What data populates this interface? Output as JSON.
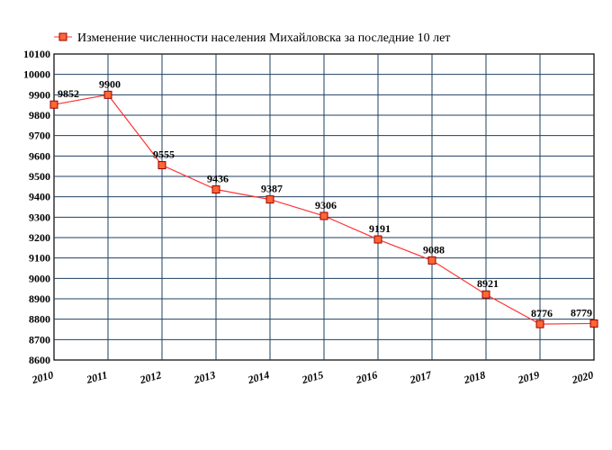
{
  "chart_data": {
    "type": "line",
    "title": "",
    "xlabel": "",
    "ylabel": "",
    "x": [
      "2010",
      "2011",
      "2012",
      "2013",
      "2014",
      "2015",
      "2016",
      "2017",
      "2018",
      "2019",
      "2020"
    ],
    "series": [
      {
        "name": "Изменение численности населения Михайловска за последние 10 лет",
        "values": [
          9852,
          9900,
          9555,
          9436,
          9387,
          9306,
          9191,
          9088,
          8921,
          8776,
          8779
        ],
        "labels": [
          "9852",
          "9900",
          "9555",
          "9436",
          "9387",
          "9306",
          "9191",
          "9088",
          "8921",
          "8776",
          "8779"
        ]
      }
    ],
    "ylim": [
      8600,
      10100
    ],
    "yticks": [
      "8600",
      "8700",
      "8800",
      "8900",
      "9000",
      "9100",
      "9200",
      "9300",
      "9400",
      "9500",
      "9600",
      "9700",
      "9800",
      "9900",
      "10000",
      "10100"
    ],
    "grid": true,
    "legend_position": "top-left",
    "colors": {
      "line": "#ff3333",
      "marker_fill": "#ff6633",
      "marker_stroke": "#990000",
      "grid": "#1f3f5f",
      "frame": "#000000"
    }
  }
}
